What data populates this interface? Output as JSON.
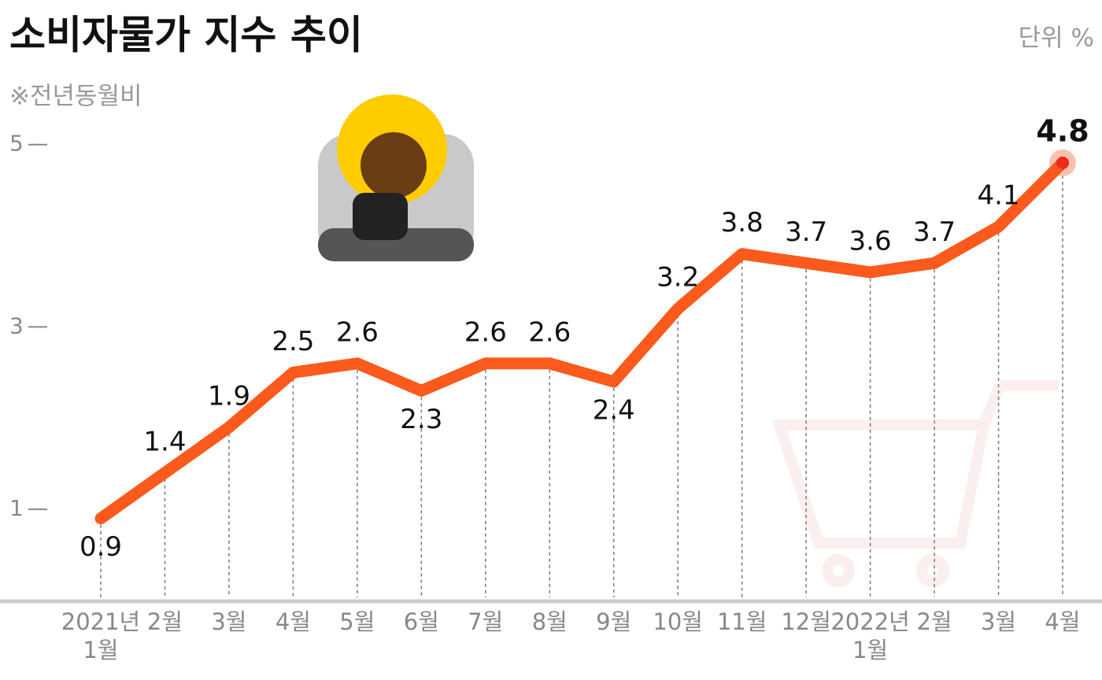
{
  "title": "소비자물가 지수 추이",
  "subtitle": "※전년동월비",
  "unit": "단위 %",
  "chart_data": {
    "type": "line",
    "categories": [
      "2021년\n1월",
      "2월",
      "3월",
      "4월",
      "5월",
      "6월",
      "7월",
      "8월",
      "9월",
      "10월",
      "11월",
      "12월",
      "2022년\n1월",
      "2월",
      "3월",
      "4월"
    ],
    "series": [
      {
        "name": "소비자물가 지수",
        "color": "#fb5a1c",
        "values": [
          0.9,
          1.4,
          1.9,
          2.5,
          2.6,
          2.3,
          2.6,
          2.6,
          2.4,
          3.2,
          3.8,
          3.7,
          3.6,
          3.7,
          4.1,
          4.8
        ]
      }
    ],
    "ylim": [
      0,
      5.8
    ],
    "yticks": [
      1,
      3,
      5
    ],
    "grid": false
  }
}
